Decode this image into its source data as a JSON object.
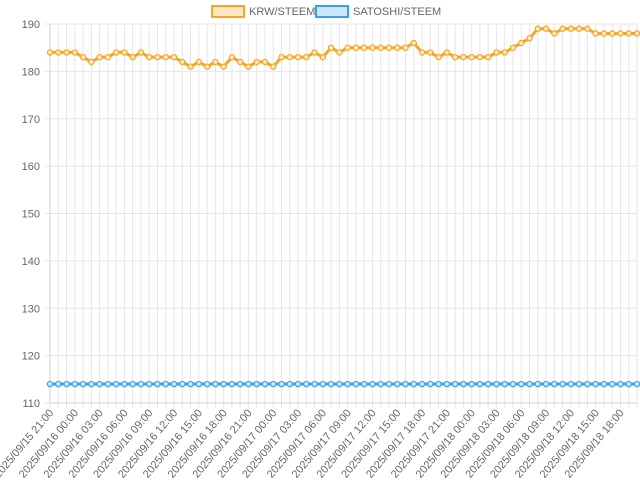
{
  "colors": {
    "krw": "#f5a623",
    "krw_fill": "#fce6c3",
    "satoshi": "#36a2eb",
    "satoshi_fill": "#cde7f9",
    "grid": "#e6e6e6",
    "text": "#666666"
  },
  "chart_data": {
    "type": "line",
    "title": "",
    "xlabel": "",
    "ylabel": "",
    "ylim": [
      110,
      190
    ],
    "yticks": [
      110,
      120,
      130,
      140,
      150,
      160,
      170,
      180,
      190
    ],
    "grid": true,
    "legend_position": "top-center",
    "x": [
      "2025/09/15 21:00",
      "2025/09/15 22:00",
      "2025/09/15 23:00",
      "2025/09/16 00:00",
      "2025/09/16 01:00",
      "2025/09/16 02:00",
      "2025/09/16 03:00",
      "2025/09/16 04:00",
      "2025/09/16 05:00",
      "2025/09/16 06:00",
      "2025/09/16 07:00",
      "2025/09/16 08:00",
      "2025/09/16 09:00",
      "2025/09/16 10:00",
      "2025/09/16 11:00",
      "2025/09/16 12:00",
      "2025/09/16 13:00",
      "2025/09/16 14:00",
      "2025/09/16 15:00",
      "2025/09/16 16:00",
      "2025/09/16 17:00",
      "2025/09/16 18:00",
      "2025/09/16 19:00",
      "2025/09/16 20:00",
      "2025/09/16 21:00",
      "2025/09/16 22:00",
      "2025/09/16 23:00",
      "2025/09/17 00:00",
      "2025/09/17 01:00",
      "2025/09/17 02:00",
      "2025/09/17 03:00",
      "2025/09/17 04:00",
      "2025/09/17 05:00",
      "2025/09/17 06:00",
      "2025/09/17 07:00",
      "2025/09/17 08:00",
      "2025/09/17 09:00",
      "2025/09/17 10:00",
      "2025/09/17 11:00",
      "2025/09/17 12:00",
      "2025/09/17 13:00",
      "2025/09/17 14:00",
      "2025/09/17 15:00",
      "2025/09/17 16:00",
      "2025/09/17 17:00",
      "2025/09/17 18:00",
      "2025/09/17 19:00",
      "2025/09/17 20:00",
      "2025/09/17 21:00",
      "2025/09/17 22:00",
      "2025/09/17 23:00",
      "2025/09/18 00:00",
      "2025/09/18 01:00",
      "2025/09/18 02:00",
      "2025/09/18 03:00",
      "2025/09/18 04:00",
      "2025/09/18 05:00",
      "2025/09/18 06:00",
      "2025/09/18 07:00",
      "2025/09/18 08:00",
      "2025/09/18 09:00",
      "2025/09/18 10:00",
      "2025/09/18 11:00",
      "2025/09/18 12:00",
      "2025/09/18 13:00",
      "2025/09/18 14:00",
      "2025/09/18 15:00",
      "2025/09/18 16:00",
      "2025/09/18 17:00",
      "2025/09/18 18:00",
      "2025/09/18 19:00",
      "2025/09/18 20:00"
    ],
    "xtick_labels": [
      "2025/09/15 21:00",
      "2025/09/16 00:00",
      "2025/09/16 03:00",
      "2025/09/16 06:00",
      "2025/09/16 09:00",
      "2025/09/16 12:00",
      "2025/09/16 15:00",
      "2025/09/16 18:00",
      "2025/09/16 21:00",
      "2025/09/17 00:00",
      "2025/09/17 03:00",
      "2025/09/17 06:00",
      "2025/09/17 09:00",
      "2025/09/17 12:00",
      "2025/09/17 15:00",
      "2025/09/17 18:00",
      "2025/09/17 21:00",
      "2025/09/18 00:00",
      "2025/09/18 03:00",
      "2025/09/18 06:00",
      "2025/09/18 09:00",
      "2025/09/18 12:00",
      "2025/09/18 15:00",
      "2025/09/18 18:00"
    ],
    "series": [
      {
        "name": "KRW/STEEM",
        "values": [
          184,
          184,
          184,
          184,
          183,
          182,
          183,
          183,
          184,
          184,
          183,
          184,
          183,
          183,
          183,
          183,
          182,
          181,
          182,
          181,
          182,
          181,
          183,
          182,
          181,
          182,
          182,
          181,
          183,
          183,
          183,
          183,
          184,
          183,
          185,
          184,
          185,
          185,
          185,
          185,
          185,
          185,
          185,
          185,
          186,
          184,
          184,
          183,
          184,
          183,
          183,
          183,
          183,
          183,
          184,
          184,
          185,
          186,
          187,
          189,
          189,
          188,
          189,
          189,
          189,
          189,
          188,
          188,
          188,
          188,
          188,
          188
        ]
      },
      {
        "name": "SATOSHI/STEEM",
        "values": [
          114,
          114,
          114,
          114,
          114,
          114,
          114,
          114,
          114,
          114,
          114,
          114,
          114,
          114,
          114,
          114,
          114,
          114,
          114,
          114,
          114,
          114,
          114,
          114,
          114,
          114,
          114,
          114,
          114,
          114,
          114,
          114,
          114,
          114,
          114,
          114,
          114,
          114,
          114,
          114,
          114,
          114,
          114,
          114,
          114,
          114,
          114,
          114,
          114,
          114,
          114,
          114,
          114,
          114,
          114,
          114,
          114,
          114,
          114,
          114,
          114,
          114,
          114,
          114,
          114,
          114,
          114,
          114,
          114,
          114,
          114,
          114
        ]
      }
    ]
  }
}
